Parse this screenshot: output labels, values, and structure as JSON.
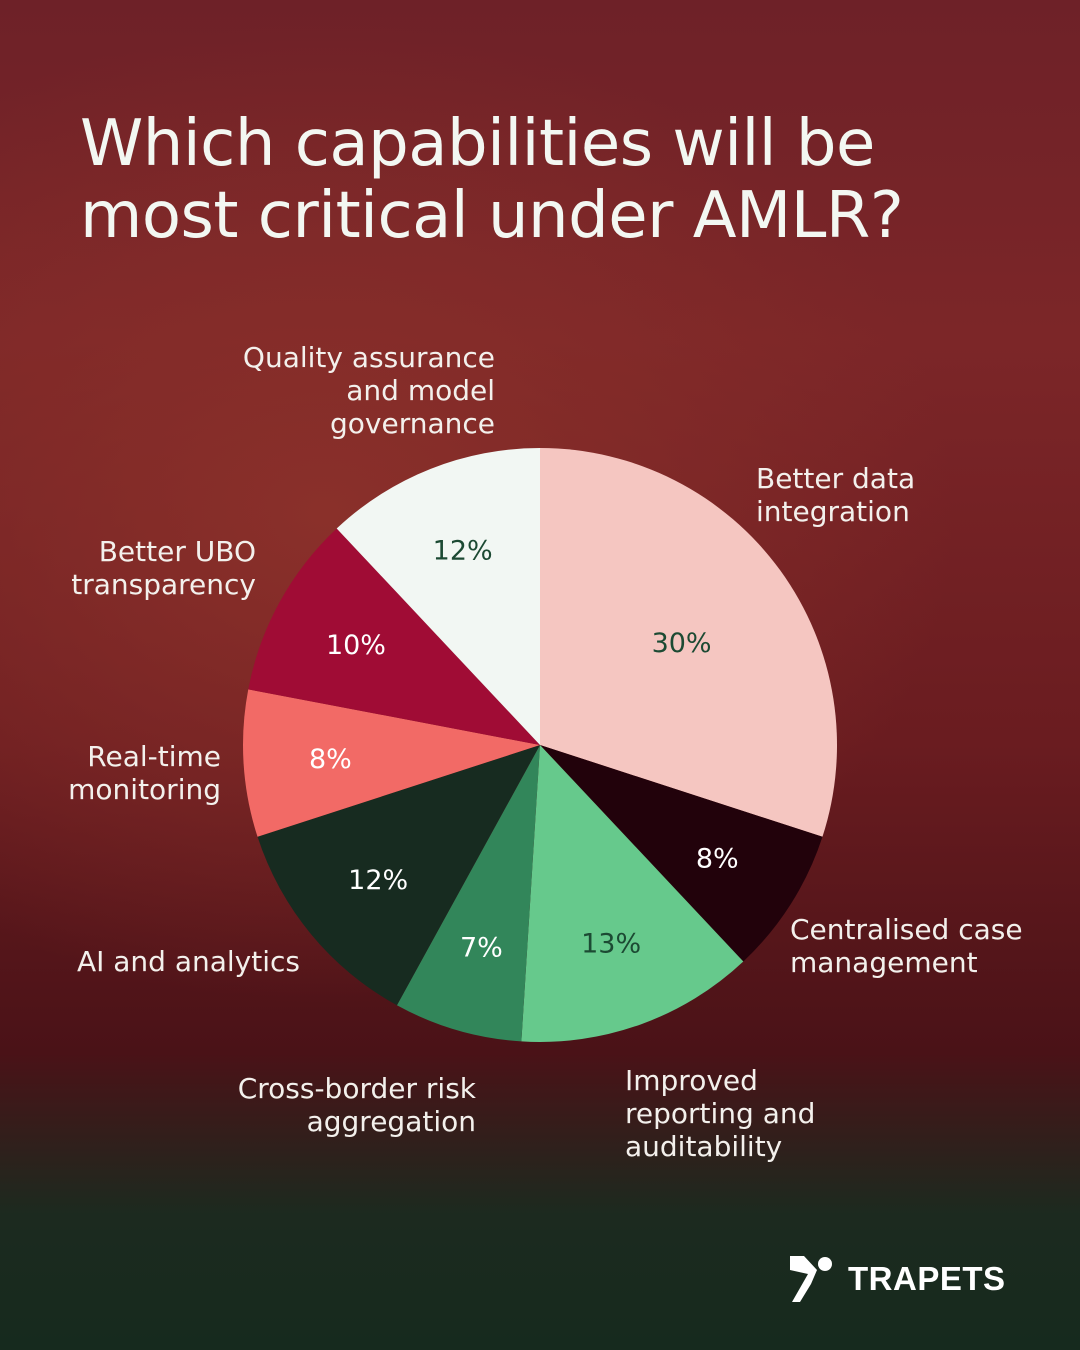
{
  "title": "Which capabilities will be most critical under AMLR?",
  "brand": {
    "name": "TRAPETS",
    "icon": "trapets-logo-icon"
  },
  "chart_data": {
    "type": "pie",
    "title": "Which capabilities will be most critical under AMLR?",
    "start_angle_deg": 0,
    "direction": "clockwise",
    "slices": [
      {
        "label": "Better data integration",
        "value": 30,
        "text": "30%",
        "color": "#f5c6c1",
        "text_color": "#1c4a33"
      },
      {
        "label": "Centralised case management",
        "value": 8,
        "text": "8%",
        "color": "#22020b",
        "text_color": "#ffffff"
      },
      {
        "label": "Improved reporting and auditability",
        "value": 13,
        "text": "13%",
        "color": "#66c98c",
        "text_color": "#1c4a33"
      },
      {
        "label": "Cross-border risk aggregation",
        "value": 7,
        "text": "7%",
        "color": "#32865a",
        "text_color": "#ffffff"
      },
      {
        "label": "AI and analytics",
        "value": 12,
        "text": "12%",
        "color": "#172b20",
        "text_color": "#ffffff"
      },
      {
        "label": "Real-time monitoring",
        "value": 8,
        "text": "8%",
        "color": "#f26a66",
        "text_color": "#ffffff"
      },
      {
        "label": "Better UBO transparency",
        "value": 10,
        "text": "10%",
        "color": "#a00c35",
        "text_color": "#ffffff"
      },
      {
        "label": "Quality assurance and model governance",
        "value": 12,
        "text": "12%",
        "color": "#f2f7f3",
        "text_color": "#1c4a33"
      }
    ]
  },
  "labels": {
    "data_integration": "Better data\nintegration",
    "case_management": "Centralised case\nmanagement",
    "reporting": "Improved\nreporting and\nauditability",
    "cross_border": "Cross-border risk\naggregation",
    "ai": "AI and analytics",
    "realtime": "Real-time\nmonitoring",
    "ubo": "Better UBO\ntransparency",
    "qa": "Quality assurance\nand model\ngovernance"
  }
}
